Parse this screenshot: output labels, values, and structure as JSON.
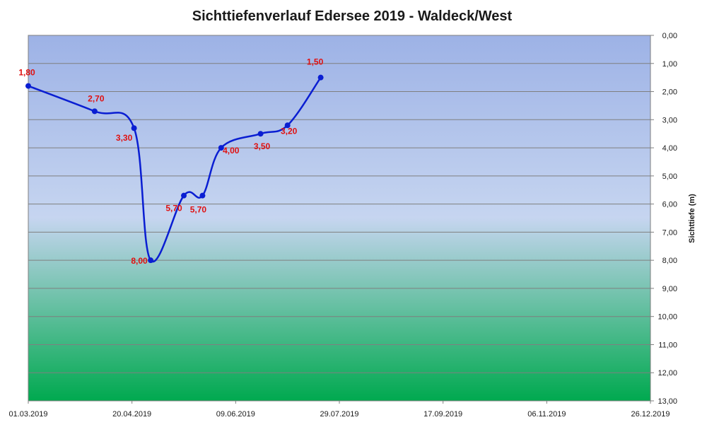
{
  "chart_data": {
    "type": "line",
    "title": "Sichttiefenverlauf Edersee 2019 - Waldeck/West",
    "xlabel": "",
    "ylabel": "Sichttiefe (m)",
    "x_ticks": [
      "01.03.2019",
      "20.04.2019",
      "09.06.2019",
      "29.07.2019",
      "17.09.2019",
      "06.11.2019",
      "26.12.2019"
    ],
    "xlim": [
      "2019-03-01",
      "2019-12-26"
    ],
    "y_ticks": [
      "0,00",
      "1,00",
      "2,00",
      "3,00",
      "4,00",
      "5,00",
      "6,00",
      "7,00",
      "8,00",
      "9,00",
      "10,00",
      "11,00",
      "12,00",
      "13,00"
    ],
    "ylim": [
      0,
      13
    ],
    "y_inverted": true,
    "y_axis_position": "right",
    "grid": true,
    "legend": "none",
    "colors": {
      "line": "#0a1ed2",
      "marker": "#0a1ed2",
      "data_label": "#e01010",
      "background_top": "#9db2e6",
      "background_mid": "#c6d5f0",
      "background_bottom": "#00a94f",
      "grid": "#7f7f7f"
    },
    "series": [
      {
        "x": [
          "2019-03-01",
          "2019-04-02",
          "2019-04-21",
          "2019-04-29",
          "2019-05-15",
          "2019-05-24",
          "2019-06-02",
          "2019-06-21",
          "2019-07-04",
          "2019-07-20"
        ],
        "values": [
          1.8,
          2.7,
          3.3,
          8.0,
          5.7,
          5.7,
          4.0,
          3.5,
          3.2,
          1.5
        ],
        "labels": [
          "1,80",
          "2,70",
          "3,30",
          "8,00",
          "5,70",
          "5,70",
          "4,00",
          "3,50",
          "3,20",
          "1,50"
        ]
      }
    ]
  }
}
